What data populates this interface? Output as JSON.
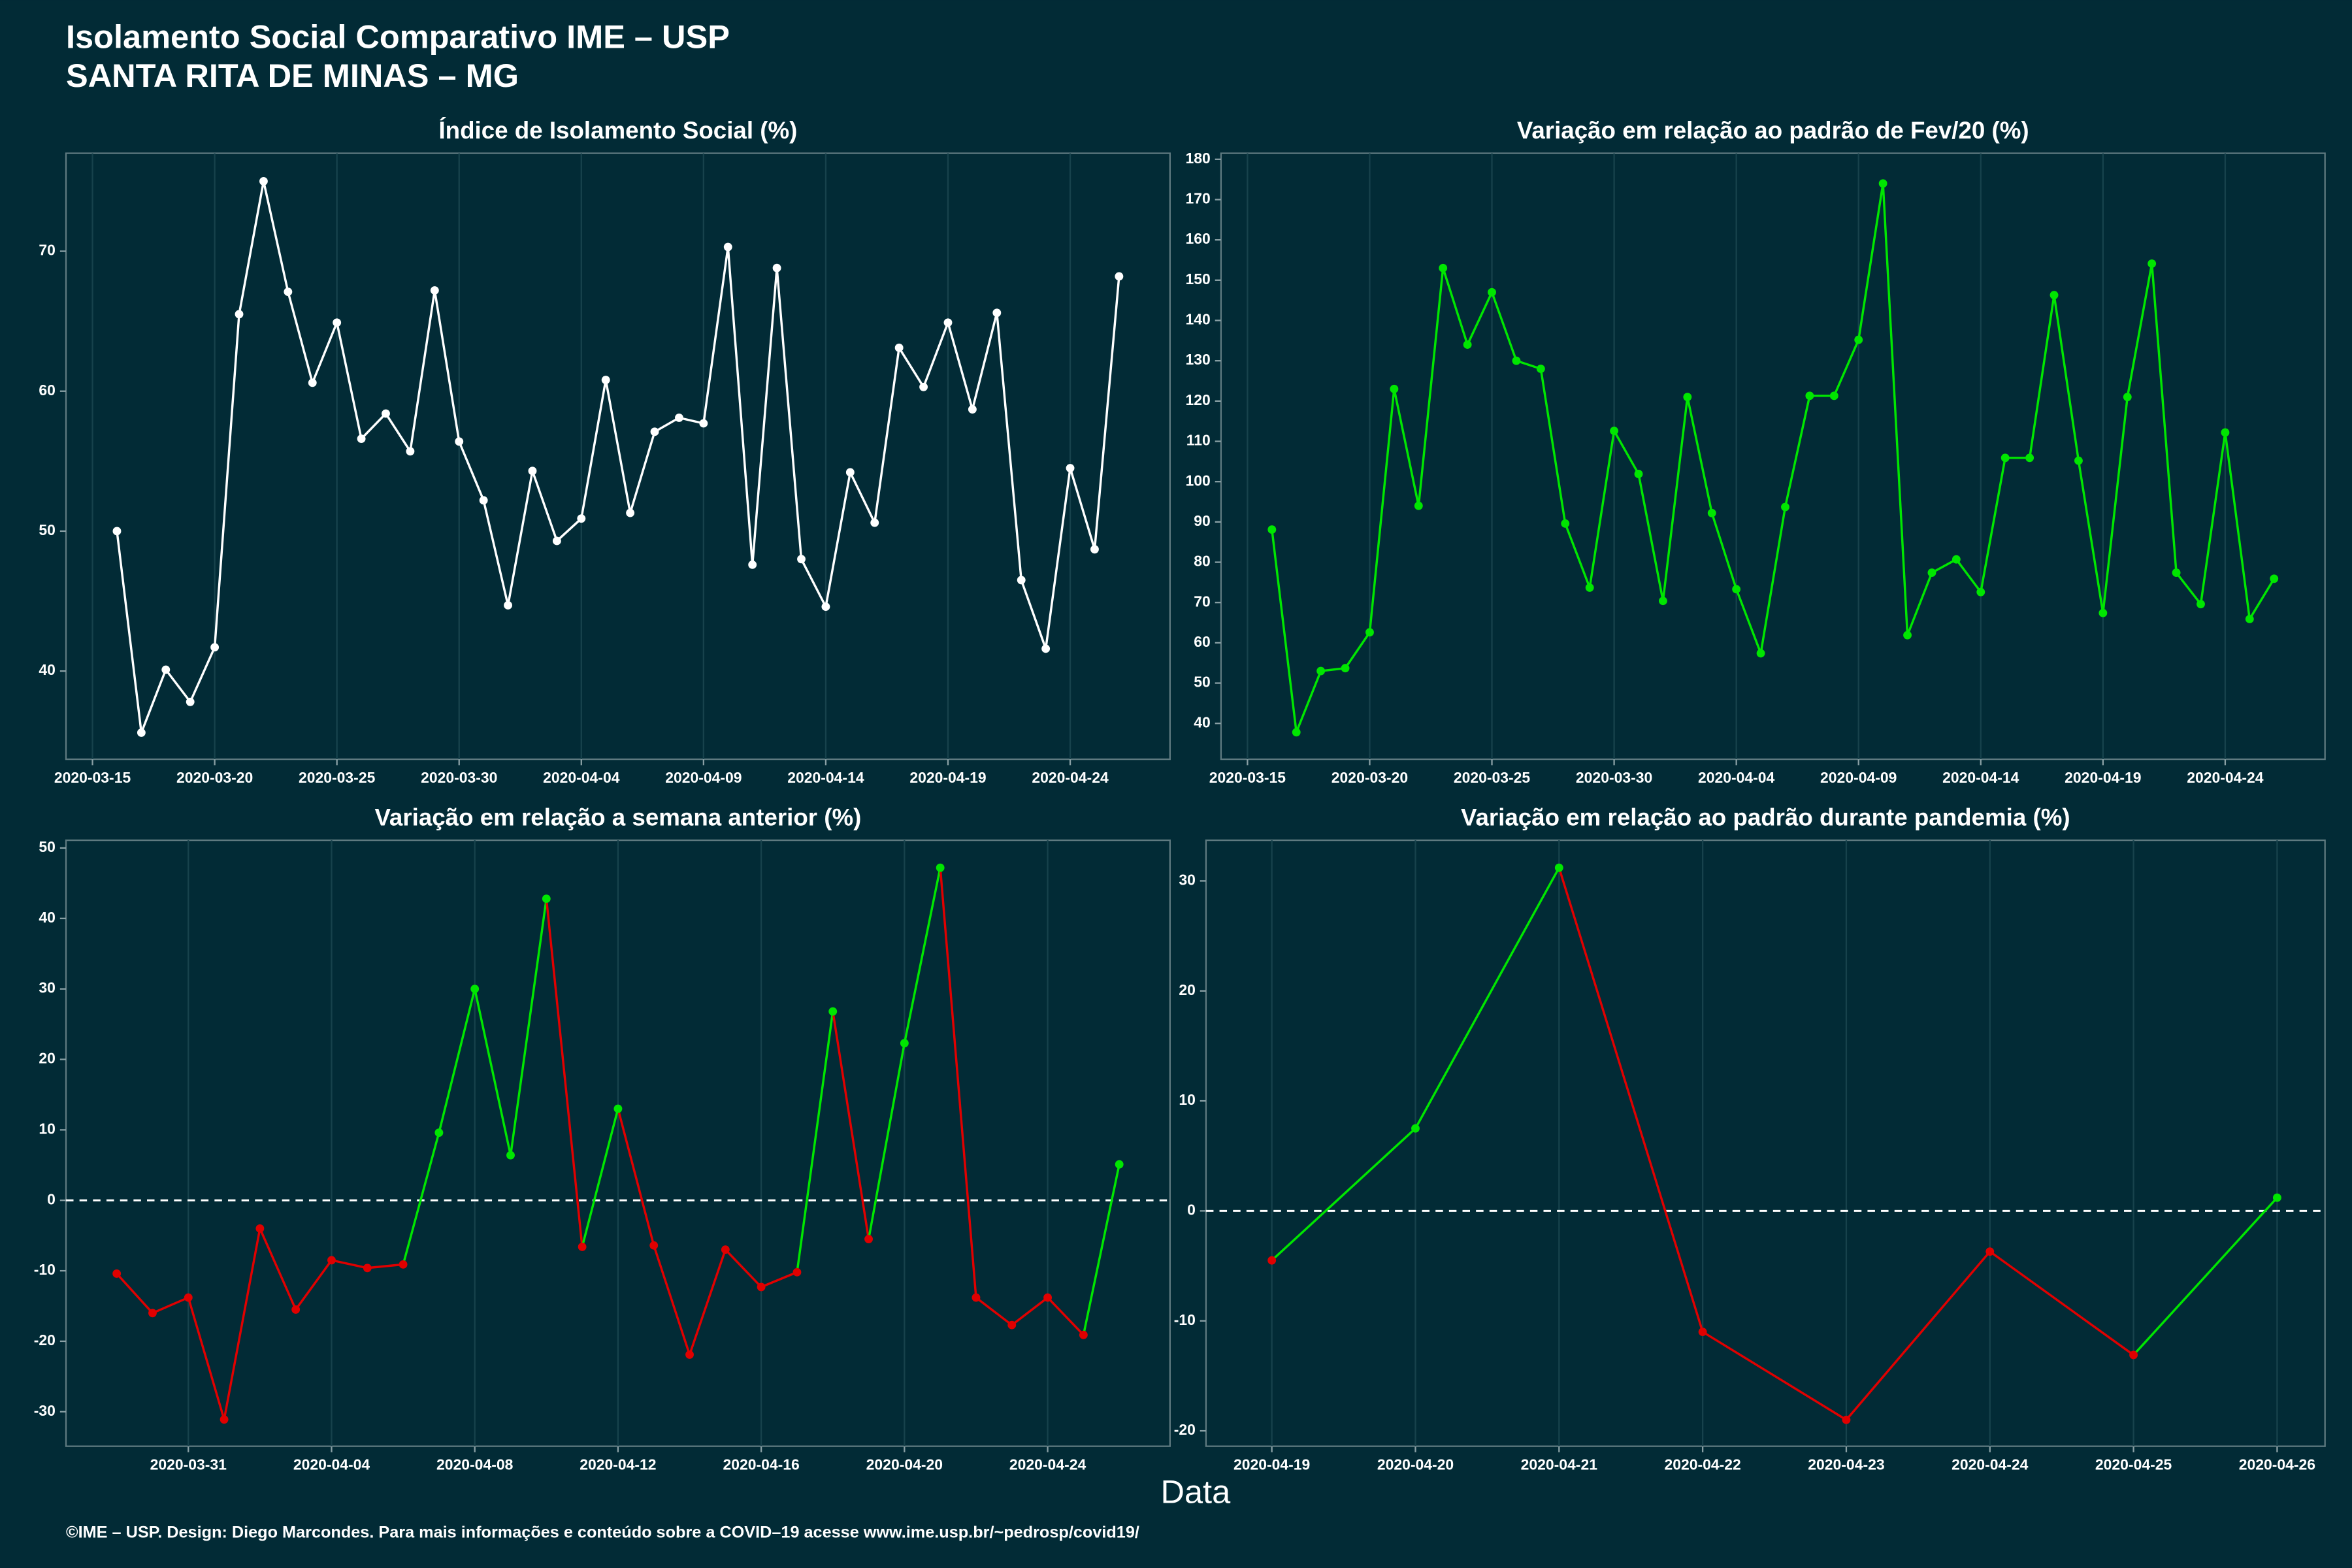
{
  "title": "Isolamento Social Comparativo IME – USP",
  "subtitle": "SANTA RITA DE MINAS – MG",
  "xlabel": "Data",
  "footer": "©IME – USP. Design: Diego Marcondes. Para mais informações e conteúdo sobre a COVID–19 acesse www.ime.usp.br/~pedrosp/covid19/",
  "chart_data": [
    {
      "type": "line",
      "title": "Índice de Isolamento Social (%)",
      "color": "#ffffff",
      "grid": true,
      "x": [
        "2020-03-16",
        "2020-03-17",
        "2020-03-18",
        "2020-03-19",
        "2020-03-20",
        "2020-03-21",
        "2020-03-22",
        "2020-03-23",
        "2020-03-24",
        "2020-03-25",
        "2020-03-26",
        "2020-03-27",
        "2020-03-28",
        "2020-03-29",
        "2020-03-30",
        "2020-03-31",
        "2020-04-01",
        "2020-04-02",
        "2020-04-03",
        "2020-04-04",
        "2020-04-05",
        "2020-04-06",
        "2020-04-07",
        "2020-04-08",
        "2020-04-09",
        "2020-04-10",
        "2020-04-11",
        "2020-04-12",
        "2020-04-13",
        "2020-04-14",
        "2020-04-15",
        "2020-04-16",
        "2020-04-17",
        "2020-04-18",
        "2020-04-19",
        "2020-04-20",
        "2020-04-21",
        "2020-04-22",
        "2020-04-23",
        "2020-04-24",
        "2020-04-25",
        "2020-04-26"
      ],
      "values": [
        50.0,
        35.6,
        40.1,
        37.8,
        41.7,
        65.5,
        75.0,
        67.1,
        60.6,
        64.9,
        56.6,
        58.4,
        55.7,
        67.2,
        56.4,
        52.2,
        44.7,
        54.3,
        49.3,
        50.9,
        60.8,
        51.3,
        57.1,
        58.1,
        57.7,
        70.3,
        47.6,
        68.8,
        48.0,
        44.6,
        54.2,
        50.6,
        63.1,
        60.3,
        64.9,
        58.7,
        65.6,
        46.5,
        41.6,
        54.5,
        48.7,
        68.2
      ],
      "xlim": [
        "2020-03-13T22:00",
        "2020-04-28T02:00"
      ],
      "xticks": [
        "2020-03-15",
        "2020-03-20",
        "2020-03-25",
        "2020-03-30",
        "2020-04-04",
        "2020-04-09",
        "2020-04-14",
        "2020-04-19",
        "2020-04-24"
      ],
      "ylim": [
        33.7,
        77.0
      ],
      "yticks": [
        40,
        50,
        60,
        70
      ]
    },
    {
      "type": "line",
      "title": "Variação em relação ao padrão de Fev/20 (%)",
      "color": "#00e600",
      "grid": true,
      "x": [
        "2020-03-16",
        "2020-03-17",
        "2020-03-18",
        "2020-03-19",
        "2020-03-20",
        "2020-03-21",
        "2020-03-22",
        "2020-03-23",
        "2020-03-24",
        "2020-03-25",
        "2020-03-26",
        "2020-03-27",
        "2020-03-28",
        "2020-03-29",
        "2020-03-30",
        "2020-03-31",
        "2020-04-01",
        "2020-04-02",
        "2020-04-03",
        "2020-04-04",
        "2020-04-05",
        "2020-04-06",
        "2020-04-07",
        "2020-04-08",
        "2020-04-09",
        "2020-04-10",
        "2020-04-11",
        "2020-04-12",
        "2020-04-13",
        "2020-04-14",
        "2020-04-15",
        "2020-04-16",
        "2020-04-17",
        "2020-04-18",
        "2020-04-19",
        "2020-04-20",
        "2020-04-21",
        "2020-04-22",
        "2020-04-23",
        "2020-04-24",
        "2020-04-25",
        "2020-04-26"
      ],
      "values": [
        88.1,
        37.8,
        53.0,
        53.7,
        62.6,
        123.0,
        94.0,
        153.0,
        134.0,
        147.0,
        130.0,
        128.0,
        89.6,
        73.7,
        112.6,
        101.9,
        70.4,
        121.0,
        92.2,
        73.3,
        57.4,
        93.7,
        121.3,
        121.3,
        135.2,
        174.0,
        61.9,
        77.4,
        80.7,
        72.6,
        105.9,
        105.9,
        146.3,
        105.2,
        67.4,
        121.0,
        154.1,
        77.4,
        69.6,
        112.2,
        65.9,
        75.9
      ],
      "xlim": [
        "2020-03-13T22:00",
        "2020-04-28T02:00"
      ],
      "xticks": [
        "2020-03-15",
        "2020-03-20",
        "2020-03-25",
        "2020-03-30",
        "2020-04-04",
        "2020-04-09",
        "2020-04-14",
        "2020-04-19",
        "2020-04-24"
      ],
      "ylim": [
        31.1,
        181.5
      ],
      "yticks": [
        40,
        50,
        60,
        70,
        80,
        90,
        100,
        110,
        120,
        130,
        140,
        150,
        160,
        170,
        180
      ]
    },
    {
      "type": "signed-line",
      "title": "Variação em relação a semana anterior (%)",
      "positive_color": "#00e600",
      "negative_color": "#e00000",
      "hline": 0,
      "grid": true,
      "x": [
        "2020-03-29",
        "2020-03-30",
        "2020-03-31",
        "2020-04-01",
        "2020-04-02",
        "2020-04-03",
        "2020-04-04",
        "2020-04-05",
        "2020-04-06",
        "2020-04-07",
        "2020-04-08",
        "2020-04-09",
        "2020-04-10",
        "2020-04-11",
        "2020-04-12",
        "2020-04-13",
        "2020-04-14",
        "2020-04-15",
        "2020-04-16",
        "2020-04-17",
        "2020-04-18",
        "2020-04-19",
        "2020-04-20",
        "2020-04-21",
        "2020-04-22",
        "2020-04-23",
        "2020-04-24",
        "2020-04-25",
        "2020-04-26"
      ],
      "values": [
        -10.4,
        -16.0,
        -13.8,
        -31.1,
        -4.0,
        -15.5,
        -8.5,
        -9.6,
        -9.1,
        9.6,
        30.0,
        6.4,
        42.8,
        -6.6,
        13.0,
        -6.4,
        -21.9,
        -7.0,
        -12.3,
        -10.2,
        26.8,
        -5.5,
        22.3,
        47.2,
        -13.8,
        -17.7,
        -13.8,
        -19.1,
        5.1
      ],
      "xlim": [
        "2020-03-27T14:00",
        "2020-04-27T10:00"
      ],
      "xticks": [
        "2020-03-31",
        "2020-04-04",
        "2020-04-08",
        "2020-04-12",
        "2020-04-16",
        "2020-04-20",
        "2020-04-24"
      ],
      "ylim": [
        -34.9,
        51.1
      ],
      "yticks": [
        -30,
        -20,
        -10,
        0,
        10,
        20,
        30,
        40,
        50
      ]
    },
    {
      "type": "signed-line",
      "title": "Variação em relação ao padrão durante pandemia (%)",
      "positive_color": "#00e600",
      "negative_color": "#e00000",
      "hline": 0,
      "grid": true,
      "x": [
        "2020-04-19",
        "2020-04-20",
        "2020-04-21",
        "2020-04-22",
        "2020-04-23",
        "2020-04-24",
        "2020-04-25",
        "2020-04-26"
      ],
      "values": [
        -4.5,
        7.5,
        31.2,
        -11.0,
        -19.0,
        -3.7,
        -13.1,
        1.2
      ],
      "xlim": [
        "2020-04-18T13:00",
        "2020-04-26T08:00"
      ],
      "xticks": [
        "2020-04-19",
        "2020-04-20",
        "2020-04-21",
        "2020-04-22",
        "2020-04-23",
        "2020-04-24",
        "2020-04-25",
        "2020-04-26"
      ],
      "ylim": [
        -21.4,
        33.7
      ],
      "yticks": [
        -20,
        -10,
        0,
        10,
        20,
        30
      ]
    }
  ]
}
